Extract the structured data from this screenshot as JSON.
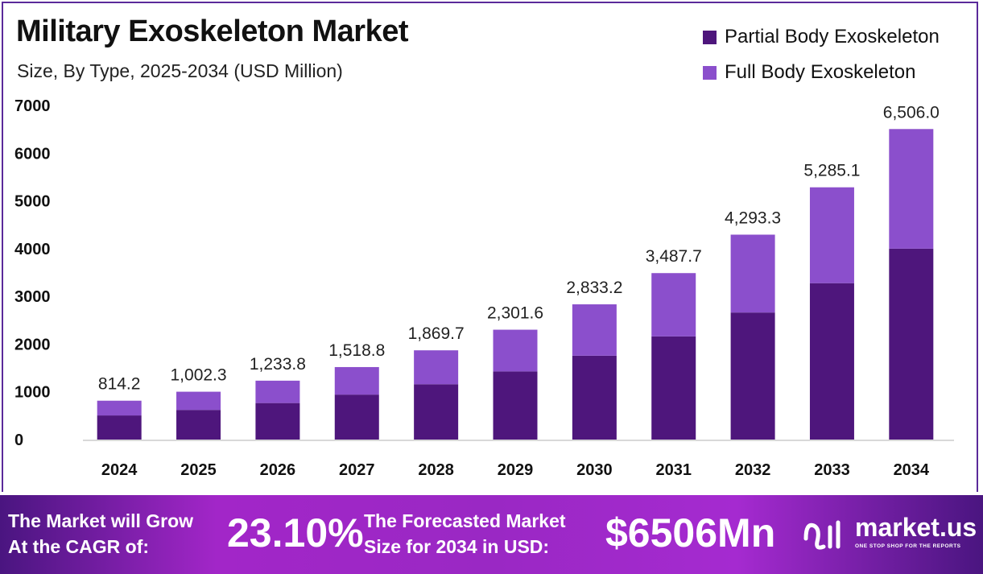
{
  "title": "Military Exoskeleton Market",
  "subtitle": "Size, By Type, 2025-2034 (USD Million)",
  "chart_data": {
    "type": "bar",
    "stacked": true,
    "categories": [
      "2024",
      "2025",
      "2026",
      "2027",
      "2028",
      "2029",
      "2030",
      "2031",
      "2032",
      "2033",
      "2034"
    ],
    "series": [
      {
        "name": "Partial Body Exoskeleton",
        "color": "#4e167c",
        "values": [
          505,
          621,
          765,
          942,
          1159,
          1427,
          1757,
          2162,
          2662,
          3277,
          4000
        ]
      },
      {
        "name": "Full Body Exoskeleton",
        "color": "#8b4fcc",
        "values": [
          309.2,
          381.3,
          468.8,
          576.8,
          710.7,
          874.6,
          1076.2,
          1325.7,
          1631.3,
          2008.1,
          2506.0
        ]
      }
    ],
    "totals": [
      814.2,
      1002.3,
      1233.8,
      1518.8,
      1869.7,
      2301.6,
      2833.2,
      3487.7,
      4293.3,
      5285.1,
      6506.0
    ],
    "total_labels": [
      "814.2",
      "1,002.3",
      "1,233.8",
      "1,518.8",
      "1,869.7",
      "2,301.6",
      "2,833.2",
      "3,487.7",
      "4,293.3",
      "5,285.1",
      "6,506.0"
    ],
    "yticks": [
      0,
      1000,
      2000,
      3000,
      4000,
      5000,
      6000,
      7000
    ],
    "ylim": [
      0,
      7000
    ],
    "grid": false,
    "legend": "top-right"
  },
  "footer": {
    "cagr_label_1": "The Market will Grow",
    "cagr_label_2": "At the CAGR of:",
    "cagr_value": "23.10%",
    "forecast_label_1": "The Forecasted Market",
    "forecast_label_2": "Size for 2034 in USD:",
    "forecast_value": "$6506Mn",
    "logo_text": "market.us",
    "logo_tagline": "ONE STOP SHOP FOR THE REPORTS"
  }
}
